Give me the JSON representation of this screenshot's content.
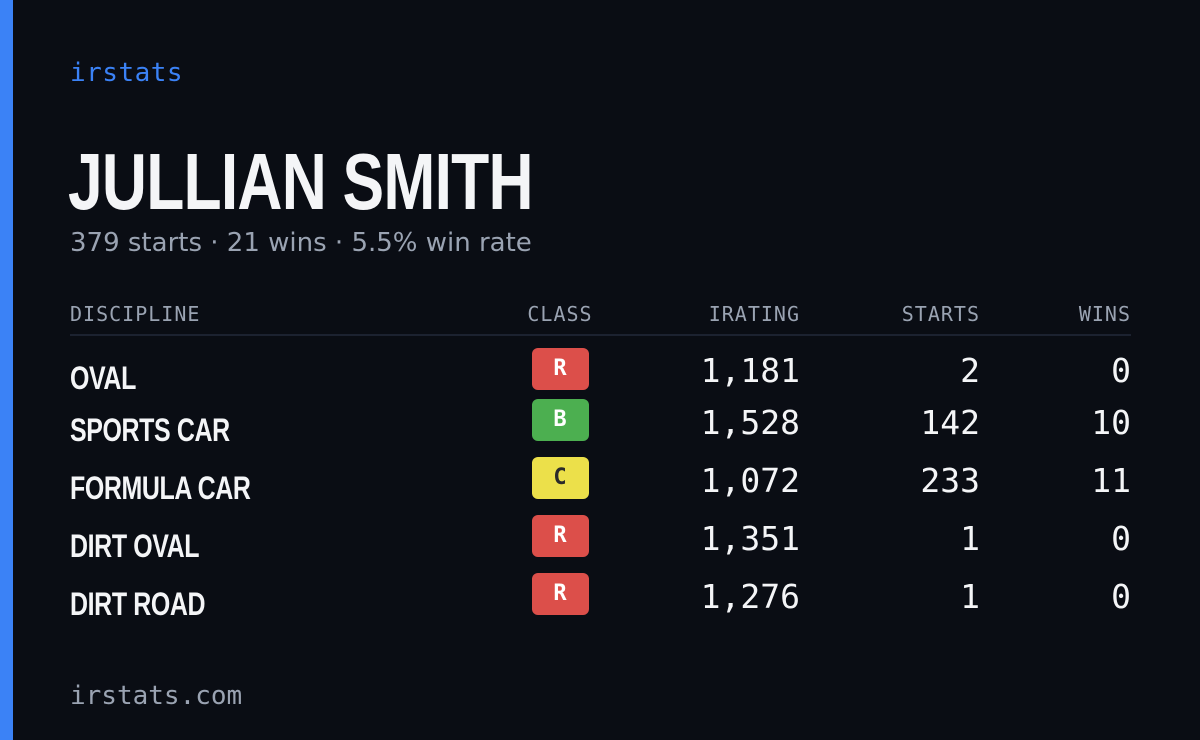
{
  "brand": "irstats",
  "driver": {
    "name": "JULLIAN SMITH",
    "summary": "379 starts · 21 wins · 5.5% win rate"
  },
  "table": {
    "headers": {
      "discipline": "DISCIPLINE",
      "class": "CLASS",
      "irating": "IRATING",
      "starts": "STARTS",
      "wins": "WINS"
    },
    "rows": [
      {
        "discipline": "OVAL",
        "class": "R",
        "class_color": "#dc4f4a",
        "class_text_color": "#ffffff",
        "irating": "1,181",
        "starts": "2",
        "wins": "0"
      },
      {
        "discipline": "SPORTS CAR",
        "class": "B",
        "class_color": "#4caf50",
        "class_text_color": "#ffffff",
        "irating": "1,528",
        "starts": "142",
        "wins": "10"
      },
      {
        "discipline": "FORMULA CAR",
        "class": "C",
        "class_color": "#ece04a",
        "class_text_color": "#2a2a2a",
        "irating": "1,072",
        "starts": "233",
        "wins": "11"
      },
      {
        "discipline": "DIRT OVAL",
        "class": "R",
        "class_color": "#dc4f4a",
        "class_text_color": "#ffffff",
        "irating": "1,351",
        "starts": "1",
        "wins": "0"
      },
      {
        "discipline": "DIRT ROAD",
        "class": "R",
        "class_color": "#dc4f4a",
        "class_text_color": "#ffffff",
        "irating": "1,276",
        "starts": "1",
        "wins": "0"
      }
    ]
  },
  "footer": "irstats.com",
  "colors": {
    "accent": "#3b82f6",
    "background": "#0a0d14",
    "text_primary": "#f4f5f7",
    "text_muted": "#9aa3b2"
  }
}
